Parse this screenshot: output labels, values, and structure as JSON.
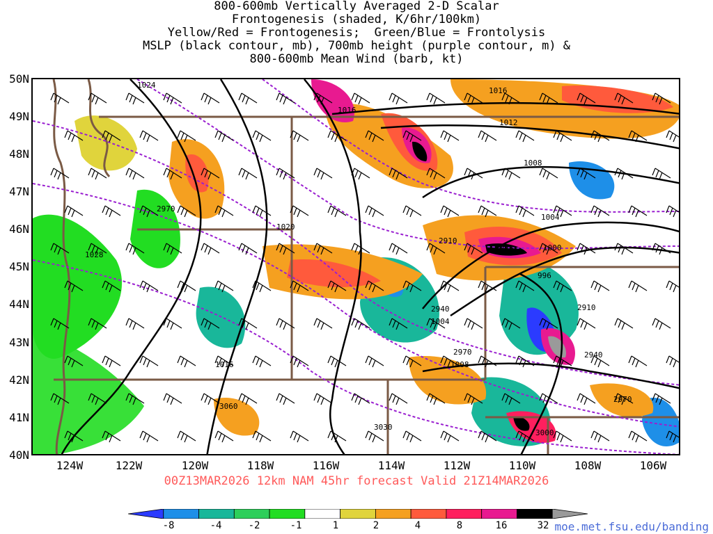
{
  "title_lines": [
    "800-600mb Vertically Averaged 2-D Scalar",
    "Frontogenesis (shaded, K/6hr/100km)",
    "Yellow/Red = Frontogenesis;  Green/Blue = Frontolysis",
    "MSLP (black contour, mb), 700mb height (purple contour, m) &",
    "800-600mb Mean Wind (barb, kt)"
  ],
  "lat_labels": [
    "50N",
    "49N",
    "48N",
    "47N",
    "46N",
    "45N",
    "44N",
    "43N",
    "42N",
    "41N",
    "40N"
  ],
  "lon_labels": [
    "124W",
    "122W",
    "120W",
    "118W",
    "116W",
    "114W",
    "112W",
    "110W",
    "108W",
    "106W"
  ],
  "valid_text": "00Z13MAR2026 12km NAM 45hr forecast Valid 21Z14MAR2026",
  "colorbar": {
    "labels": [
      "-8",
      "-4",
      "-2",
      "-1",
      "1",
      "2",
      "4",
      "8",
      "16",
      "32"
    ],
    "colors": [
      "#2b3bff",
      "#1e8fe8",
      "#19b79a",
      "#2dcf5a",
      "#22dd22",
      "#ffffff",
      "#e0d43c",
      "#f5a020",
      "#ff5a3c",
      "#ff1f5e",
      "#e81a90",
      "#000000",
      "#9a9a9a"
    ]
  },
  "isobar_labels": [
    "1024",
    "1016",
    "1016",
    "1012",
    "1008",
    "1004",
    "1000",
    "996",
    "1004",
    "1008",
    "1016",
    "1020",
    "1028"
  ],
  "height_labels": [
    "2970",
    "2910",
    "2940",
    "2910",
    "2940",
    "2970",
    "3060",
    "3030",
    "3000",
    "2970"
  ],
  "credit": "moe.met.fsu.edu/banding",
  "colors": {
    "isobar": "#000000",
    "height": "#9a1fd0",
    "border": "#7a5a45",
    "valid": "#ff5a5a",
    "credit": "#4a6bd8"
  }
}
